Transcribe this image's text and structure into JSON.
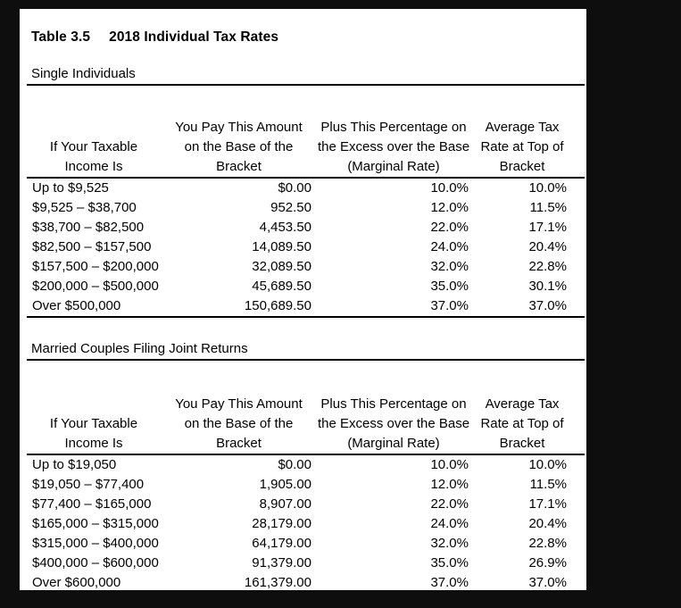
{
  "title": {
    "label": "Table 3.5",
    "text": "2018 Individual Tax Rates"
  },
  "table_headers": {
    "col1": [
      "If Your Taxable",
      "Income Is"
    ],
    "col2": [
      "You Pay This Amount",
      "on the Base of the",
      "Bracket"
    ],
    "col3": [
      "Plus This Percentage on",
      "the Excess over the Base",
      "(Marginal Rate)"
    ],
    "col4": [
      "Average Tax",
      "Rate at Top of",
      "Bracket"
    ]
  },
  "sections": [
    {
      "heading": "Single Individuals",
      "rows": [
        [
          "Up to $9,525",
          "$0.00",
          "10.0%",
          "10.0%"
        ],
        [
          "$9,525 – $38,700",
          "952.50",
          "12.0%",
          "11.5%"
        ],
        [
          "$38,700 – $82,500",
          "4,453.50",
          "22.0%",
          "17.1%"
        ],
        [
          "$82,500 – $157,500",
          "14,089.50",
          "24.0%",
          "20.4%"
        ],
        [
          "$157,500 – $200,000",
          "32,089.50",
          "32.0%",
          "22.8%"
        ],
        [
          "$200,000 – $500,000",
          "45,689.50",
          "35.0%",
          "30.1%"
        ],
        [
          "Over $500,000",
          "150,689.50",
          "37.0%",
          "37.0%"
        ]
      ]
    },
    {
      "heading": "Married Couples Filing Joint Returns",
      "rows": [
        [
          "Up to $19,050",
          "$0.00",
          "10.0%",
          "10.0%"
        ],
        [
          "$19,050 – $77,400",
          "1,905.00",
          "12.0%",
          "11.5%"
        ],
        [
          "$77,400 – $165,000",
          "8,907.00",
          "22.0%",
          "17.1%"
        ],
        [
          "$165,000 – $315,000",
          "28,179.00",
          "24.0%",
          "20.4%"
        ],
        [
          "$315,000 – $400,000",
          "64,179.00",
          "32.0%",
          "22.8%"
        ],
        [
          "$400,000 – $600,000",
          "91,379.00",
          "35.0%",
          "26.9%"
        ],
        [
          "Over $600,000",
          "161,379.00",
          "37.0%",
          "37.0%"
        ]
      ]
    }
  ],
  "colors": {
    "frame_bg": "#0e0e0e",
    "page_bg": "#ffffff",
    "text": "#000000"
  }
}
